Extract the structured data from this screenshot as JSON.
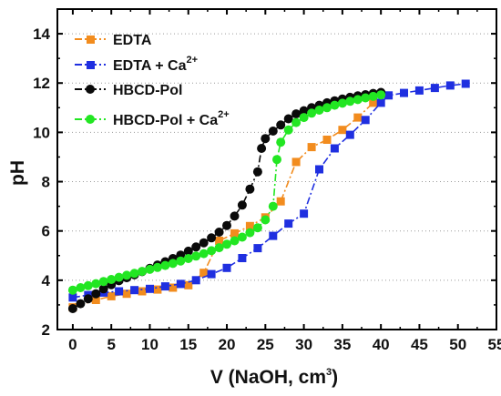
{
  "chart_data": {
    "type": "line",
    "xlabel": "V (NaOH, cm",
    "xlabel_sup": "3",
    "xlabel_end": ")",
    "ylabel": "pH",
    "xlim": [
      -2,
      55
    ],
    "ylim": [
      2,
      15
    ],
    "xticks": [
      "0",
      "5",
      "10",
      "15",
      "20",
      "25",
      "30",
      "35",
      "40",
      "45",
      "50",
      "55"
    ],
    "yticks": [
      "2",
      "4",
      "6",
      "8",
      "10",
      "12",
      "14"
    ],
    "grid": "dotted-horizontal",
    "legend_position": "top-left",
    "series": [
      {
        "name": "EDTA",
        "name_sup": "",
        "color": "#f28c1e",
        "marker": "square",
        "line": "dash-dot",
        "x": [
          0,
          3,
          5,
          7,
          9,
          11,
          13,
          15,
          17,
          19,
          21,
          23,
          25,
          27,
          29,
          31,
          33,
          35,
          37,
          39
        ],
        "y": [
          2.9,
          3.2,
          3.35,
          3.45,
          3.55,
          3.62,
          3.7,
          3.8,
          4.3,
          5.6,
          5.9,
          6.2,
          6.55,
          7.2,
          8.8,
          9.4,
          9.7,
          10.1,
          10.6,
          11.2
        ]
      },
      {
        "name": "EDTA + Ca",
        "name_sup": "2+",
        "color": "#1f2fe0",
        "marker": "square",
        "line": "dash-dot",
        "x": [
          0,
          2,
          4,
          6,
          8,
          10,
          12,
          14,
          16,
          18,
          20,
          22,
          24,
          26,
          28,
          30,
          32,
          34,
          36,
          38,
          40,
          41,
          43,
          45,
          47,
          49,
          51
        ],
        "y": [
          3.3,
          3.4,
          3.5,
          3.55,
          3.6,
          3.65,
          3.75,
          3.85,
          4.0,
          4.25,
          4.5,
          4.9,
          5.3,
          5.8,
          6.3,
          6.7,
          8.5,
          9.35,
          9.9,
          10.5,
          11.2,
          11.5,
          11.6,
          11.7,
          11.8,
          11.9,
          11.97
        ]
      },
      {
        "name": "HBCD-Pol",
        "name_sup": "",
        "color": "#0a0a0a",
        "marker": "circle",
        "line": "dash-dot",
        "x": [
          0,
          1,
          2,
          3,
          4,
          5,
          6,
          7,
          8,
          9,
          10,
          11,
          12,
          13,
          14,
          15,
          16,
          17,
          18,
          19,
          20,
          21,
          22,
          23,
          24,
          24.5,
          25,
          26,
          27,
          28,
          29,
          30,
          31,
          32,
          33,
          34,
          35,
          36,
          37,
          38,
          39,
          40
        ],
        "y": [
          2.85,
          3.05,
          3.25,
          3.45,
          3.65,
          3.82,
          3.98,
          4.1,
          4.22,
          4.35,
          4.48,
          4.62,
          4.75,
          4.88,
          5.02,
          5.18,
          5.35,
          5.52,
          5.72,
          5.95,
          6.22,
          6.6,
          7.05,
          7.7,
          8.4,
          9.35,
          9.75,
          10.05,
          10.3,
          10.55,
          10.75,
          10.88,
          11.0,
          11.1,
          11.2,
          11.28,
          11.35,
          11.42,
          11.48,
          11.53,
          11.58,
          11.62
        ]
      },
      {
        "name": "HBCD-Pol + Ca",
        "name_sup": "2+",
        "color": "#22e622",
        "marker": "circle",
        "line": "dash-dot",
        "x": [
          0,
          1,
          2,
          3,
          4,
          5,
          6,
          7,
          8,
          9,
          10,
          11,
          12,
          13,
          14,
          15,
          16,
          17,
          18,
          19,
          20,
          21,
          22,
          23,
          24,
          25,
          26,
          26.5,
          27,
          28,
          29,
          30,
          31,
          32,
          33,
          34,
          35,
          36,
          37,
          38,
          39,
          40
        ],
        "y": [
          3.6,
          3.7,
          3.78,
          3.86,
          3.95,
          4.03,
          4.12,
          4.2,
          4.28,
          4.36,
          4.44,
          4.52,
          4.6,
          4.68,
          4.78,
          4.88,
          4.98,
          5.08,
          5.2,
          5.32,
          5.46,
          5.6,
          5.75,
          5.93,
          6.13,
          6.45,
          7.0,
          8.9,
          9.6,
          10.1,
          10.4,
          10.6,
          10.78,
          10.9,
          11.0,
          11.1,
          11.18,
          11.26,
          11.33,
          11.4,
          11.46,
          11.52
        ]
      }
    ]
  }
}
